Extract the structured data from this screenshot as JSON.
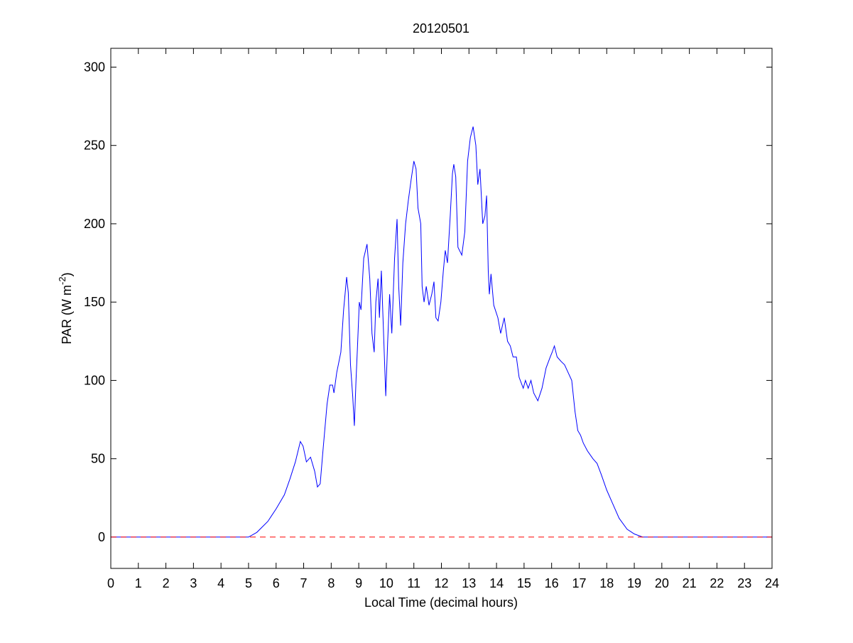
{
  "chart_data": {
    "type": "line",
    "title": "20120501",
    "xlabel": "Local Time (decimal hours)",
    "ylabel": {
      "text": "PAR (W m",
      "superscript": "-2",
      "suffix": ")"
    },
    "xlim": [
      0,
      24
    ],
    "xticks": [
      0,
      1,
      2,
      3,
      4,
      5,
      6,
      7,
      8,
      9,
      10,
      11,
      12,
      13,
      14,
      15,
      16,
      17,
      18,
      19,
      20,
      21,
      22,
      23,
      24
    ],
    "ylim": [
      -20,
      312
    ],
    "yticks": [
      0,
      50,
      100,
      150,
      200,
      250,
      300
    ],
    "reference_line": {
      "value": 0,
      "color": "#ff0000",
      "dashed": true
    },
    "series": [
      {
        "color": "#0000ff",
        "x": [
          0,
          5.0,
          5.3,
          5.7,
          6.0,
          6.3,
          6.5,
          6.7,
          6.88,
          6.98,
          7.1,
          7.25,
          7.4,
          7.5,
          7.6,
          7.7,
          7.85,
          7.95,
          8.05,
          8.1,
          8.2,
          8.35,
          8.45,
          8.56,
          8.62,
          8.7,
          8.78,
          8.84,
          8.9,
          8.95,
          9.02,
          9.08,
          9.18,
          9.3,
          9.4,
          9.48,
          9.56,
          9.62,
          9.7,
          9.75,
          9.82,
          9.9,
          9.98,
          10.05,
          10.12,
          10.2,
          10.3,
          10.39,
          10.45,
          10.52,
          10.6,
          10.7,
          10.8,
          10.9,
          11.0,
          11.08,
          11.15,
          11.25,
          11.3,
          11.37,
          11.45,
          11.55,
          11.65,
          11.73,
          11.8,
          11.88,
          11.98,
          12.07,
          12.14,
          12.22,
          12.32,
          12.4,
          12.45,
          12.52,
          12.6,
          12.74,
          12.85,
          12.95,
          13.05,
          13.15,
          13.25,
          13.32,
          13.4,
          13.5,
          13.58,
          13.64,
          13.7,
          13.74,
          13.8,
          13.9,
          14.05,
          14.15,
          14.28,
          14.4,
          14.5,
          14.6,
          14.72,
          14.82,
          14.97,
          15.05,
          15.15,
          15.25,
          15.35,
          15.5,
          15.65,
          15.8,
          15.95,
          16.02,
          16.1,
          16.2,
          16.35,
          16.47,
          16.6,
          16.73,
          16.85,
          16.95,
          17.05,
          17.15,
          17.3,
          17.5,
          17.65,
          17.8,
          18.0,
          18.2,
          18.45,
          18.74,
          19.0,
          19.3,
          24
        ],
        "values": [
          0,
          0,
          3,
          10,
          18,
          27,
          37,
          48,
          61,
          58,
          48,
          51,
          42,
          32,
          34,
          55,
          85,
          97,
          97,
          92,
          105,
          118,
          145,
          166,
          156,
          110,
          90,
          71,
          100,
          120,
          150,
          145,
          178,
          187,
          165,
          130,
          118,
          150,
          165,
          140,
          170,
          130,
          90,
          125,
          155,
          130,
          178,
          203,
          160,
          135,
          175,
          200,
          215,
          228,
          240,
          235,
          210,
          200,
          160,
          150,
          160,
          148,
          155,
          163,
          140,
          138,
          150,
          170,
          183,
          175,
          205,
          232,
          238,
          230,
          185,
          180,
          195,
          240,
          255,
          262,
          250,
          225,
          235,
          200,
          205,
          218,
          170,
          155,
          168,
          148,
          140,
          130,
          140,
          125,
          122,
          115,
          115,
          102,
          95,
          100,
          95,
          100,
          92,
          87,
          95,
          108,
          115,
          118,
          122,
          115,
          112,
          110,
          105,
          100,
          80,
          68,
          65,
          60,
          55,
          50,
          47,
          40,
          30,
          22,
          12,
          5,
          2,
          0,
          0
        ]
      }
    ]
  }
}
